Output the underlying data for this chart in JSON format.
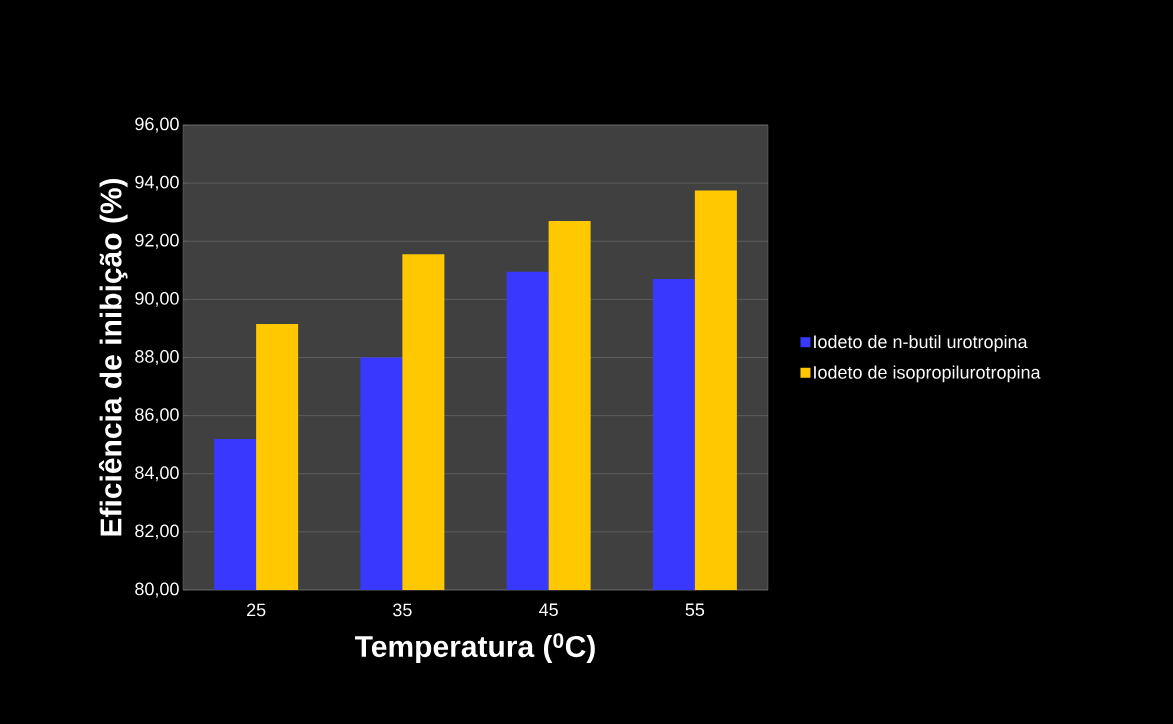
{
  "chart_data": {
    "type": "bar",
    "xlabel": "Temperatura ($^{0}$C)",
    "ylabel": "Eficiência de inibição (%)",
    "categories": [
      "25",
      "35",
      "45",
      "55"
    ],
    "series": [
      {
        "name": "Iodeto de n-butil urotropina",
        "color": "#3838ff",
        "values": [
          85.2,
          88.0,
          90.95,
          90.7
        ]
      },
      {
        "name": "Iodeto de isopropilurotropina",
        "color": "#ffc800",
        "values": [
          89.15,
          91.55,
          92.7,
          93.75
        ]
      }
    ],
    "ylim": [
      80,
      96
    ],
    "yticks": [
      {
        "value": 80,
        "label": "80,00"
      },
      {
        "value": 82,
        "label": "82,00"
      },
      {
        "value": 84,
        "label": "84,00"
      },
      {
        "value": 86,
        "label": "86,00"
      },
      {
        "value": 88,
        "label": "88,00"
      },
      {
        "value": 90,
        "label": "90,00"
      },
      {
        "value": 92,
        "label": "92,00"
      },
      {
        "value": 94,
        "label": "94,00"
      },
      {
        "value": 96,
        "label": "96,00"
      }
    ],
    "grid": "y",
    "legend": "right"
  }
}
